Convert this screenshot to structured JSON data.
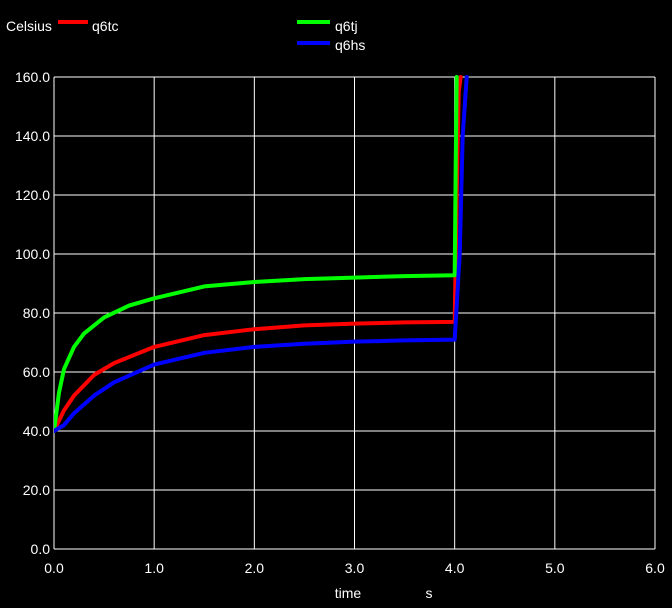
{
  "chart_data": {
    "type": "line",
    "ylabel": "Celsius",
    "xlabel": "time",
    "xunit": "s",
    "xlim": [
      0,
      6
    ],
    "ylim": [
      0,
      160
    ],
    "xticks": [
      "0.0",
      "1.0",
      "2.0",
      "3.0",
      "4.0",
      "5.0",
      "6.0"
    ],
    "yticks": [
      "0.0",
      "20.0",
      "40.0",
      "60.0",
      "80.0",
      "100.0",
      "120.0",
      "140.0",
      "160.0"
    ],
    "grid": true,
    "legend_position": "top",
    "series": [
      {
        "name": "q6tc",
        "color": "#ff0000",
        "x": [
          0,
          0.1,
          0.2,
          0.4,
          0.6,
          1.0,
          1.5,
          2.0,
          2.5,
          3.0,
          3.5,
          4.0,
          4.02,
          4.04,
          4.06
        ],
        "y": [
          40,
          47,
          52,
          59,
          63,
          68.5,
          72.5,
          74.5,
          75.8,
          76.4,
          76.8,
          77,
          120,
          155,
          160
        ]
      },
      {
        "name": "q6tj",
        "color": "#00ff00",
        "x": [
          0,
          0.05,
          0.1,
          0.2,
          0.3,
          0.5,
          0.75,
          1.0,
          1.5,
          2.0,
          2.5,
          3.0,
          3.5,
          4.0,
          4.01,
          4.02
        ],
        "y": [
          40,
          53,
          61,
          68.5,
          73,
          78.5,
          82.5,
          85,
          89,
          90.5,
          91.5,
          92,
          92.5,
          92.8,
          130,
          160
        ]
      },
      {
        "name": "q6hs",
        "color": "#0000ff",
        "x": [
          0,
          0.1,
          0.2,
          0.4,
          0.6,
          1.0,
          1.5,
          2.0,
          2.5,
          3.0,
          3.5,
          4.0,
          4.05,
          4.08,
          4.12
        ],
        "y": [
          40,
          42,
          46,
          52,
          56.5,
          62.5,
          66.5,
          68.5,
          69.6,
          70.3,
          70.7,
          71,
          100,
          140,
          160
        ]
      }
    ]
  }
}
